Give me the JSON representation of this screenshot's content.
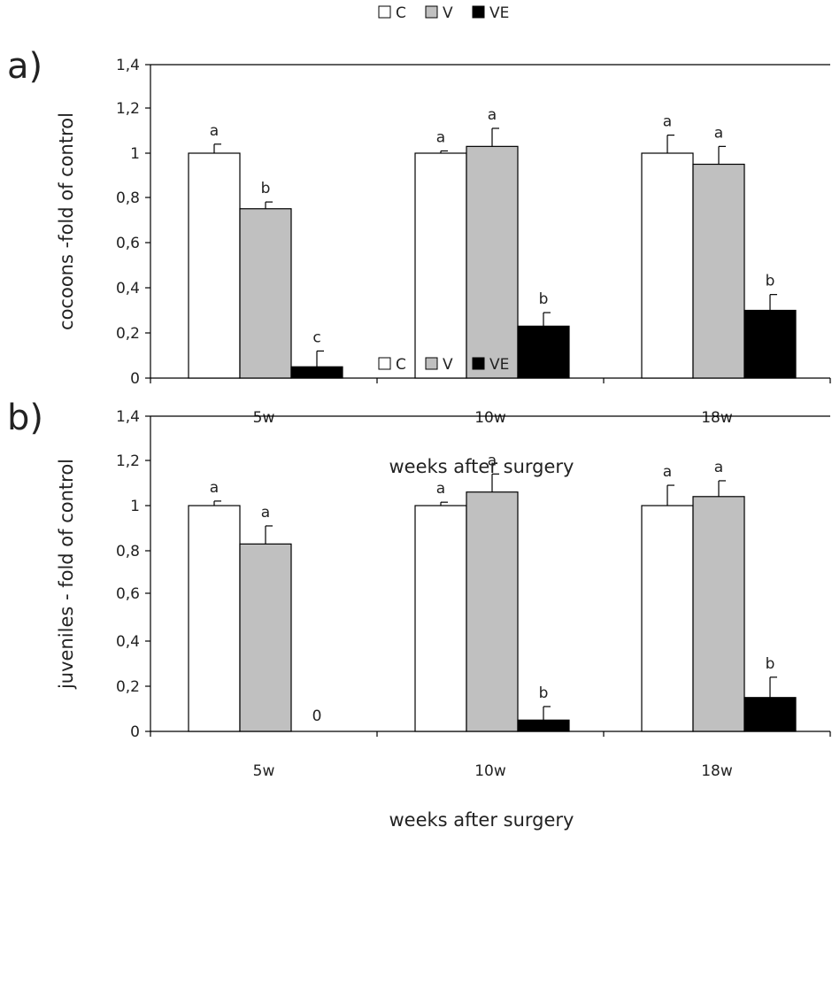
{
  "colors": {
    "C": "#ffffff",
    "V": "#c0c0c0",
    "VE": "#000000",
    "axis": "#000000"
  },
  "chart_data": [
    {
      "type": "bar",
      "panel_label": "a)",
      "legend": [
        "C",
        "V",
        "VE"
      ],
      "legend_position": "top-center",
      "categories": [
        "5w",
        "10w",
        "18w"
      ],
      "xlabel": "weeks after surgery",
      "ylabel": "cocoons -fold of control",
      "ylim": [
        0,
        1.4
      ],
      "yticks": [
        "0",
        "0,2",
        "0,4",
        "0,6",
        "0,8",
        "1",
        "1,2",
        "1,4"
      ],
      "grid": false,
      "series": [
        {
          "name": "C",
          "values": [
            1.0,
            1.0,
            1.0
          ],
          "errors": [
            0.04,
            0.01,
            0.08
          ],
          "labels": [
            "a",
            "a",
            "a"
          ]
        },
        {
          "name": "V",
          "values": [
            0.75,
            1.03,
            0.95
          ],
          "errors": [
            0.03,
            0.08,
            0.08
          ],
          "labels": [
            "b",
            "a",
            "a"
          ]
        },
        {
          "name": "VE",
          "values": [
            0.05,
            0.23,
            0.3
          ],
          "errors": [
            0.07,
            0.06,
            0.07
          ],
          "labels": [
            "c",
            "b",
            "b"
          ]
        }
      ]
    },
    {
      "type": "bar",
      "panel_label": "b)",
      "legend": [
        "C",
        "V",
        "VE"
      ],
      "legend_position": "top-center",
      "categories": [
        "5w",
        "10w",
        "18w"
      ],
      "xlabel": "weeks after surgery",
      "ylabel": "juveniles - fold of control",
      "ylim": [
        0,
        1.4
      ],
      "yticks": [
        "0",
        "0,2",
        "0,4",
        "0,6",
        "0,8",
        "1",
        "1,2",
        "1,4"
      ],
      "grid": false,
      "series": [
        {
          "name": "C",
          "values": [
            1.0,
            1.0,
            1.0
          ],
          "errors": [
            0.02,
            0.015,
            0.09
          ],
          "labels": [
            "a",
            "a",
            "a"
          ]
        },
        {
          "name": "V",
          "values": [
            0.83,
            1.06,
            1.04
          ],
          "errors": [
            0.08,
            0.08,
            0.07
          ],
          "labels": [
            "a",
            "a",
            "a"
          ]
        },
        {
          "name": "VE",
          "values": [
            0,
            0.05,
            0.15
          ],
          "errors": [
            0,
            0.06,
            0.09
          ],
          "labels": [
            "0",
            "b",
            "b"
          ]
        }
      ]
    }
  ]
}
